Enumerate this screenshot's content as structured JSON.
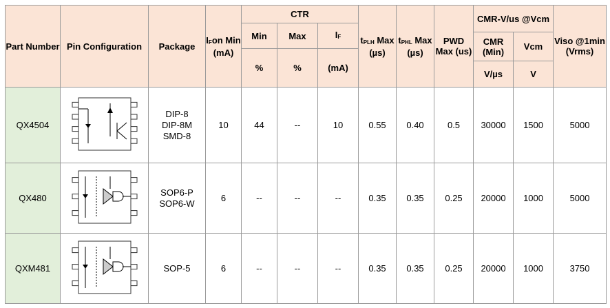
{
  "header": {
    "part_number": "Part Number",
    "pin_configuration": "Pin Configuration",
    "package": "Package",
    "ifon": {
      "base": "I",
      "sub": "F",
      "rest": "on Min (mA)"
    },
    "ctr": "CTR",
    "ctr_min": "Min",
    "ctr_max": "Max",
    "ctr_if": {
      "base": "I",
      "sub": "F"
    },
    "ctr_min_unit": "%",
    "ctr_max_unit": "%",
    "ctr_if_unit": "(mA)",
    "tplh": {
      "base": "t",
      "sub": "PLH",
      "rest": "Max (µs)"
    },
    "tphl": {
      "base": "t",
      "sub": "PHL",
      "rest": "Max (µs)"
    },
    "pwd": "PWD Max (us)",
    "cmr_group": "CMR-V/us @Vcm",
    "cmr": "CMR (Min)",
    "vcm": "Vcm",
    "cmr_unit": "V/µs",
    "vcm_unit": "V",
    "viso": "Viso @1min (Vrms)"
  },
  "rows": [
    {
      "part": "QX4504",
      "package": [
        "DIP-8",
        "DIP-8M",
        "SMD-8"
      ],
      "ifon": "10",
      "ctr_min": "44",
      "ctr_max": "--",
      "ctr_if": "10",
      "tplh": "0.55",
      "tphl": "0.40",
      "pwd": "0.5",
      "cmr": "30000",
      "vcm": "1500",
      "viso": "5000"
    },
    {
      "part": "QX480",
      "package": [
        "SOP6-P",
        "SOP6-W"
      ],
      "ifon": "6",
      "ctr_min": "--",
      "ctr_max": "--",
      "ctr_if": "--",
      "tplh": "0.35",
      "tphl": "0.35",
      "pwd": "0.25",
      "cmr": "20000",
      "vcm": "1000",
      "viso": "5000"
    },
    {
      "part": "QXM481",
      "package": [
        "SOP-5"
      ],
      "ifon": "6",
      "ctr_min": "--",
      "ctr_max": "--",
      "ctr_if": "--",
      "tplh": "0.35",
      "tphl": "0.35",
      "pwd": "0.25",
      "cmr": "20000",
      "vcm": "1000",
      "viso": "3750"
    }
  ]
}
